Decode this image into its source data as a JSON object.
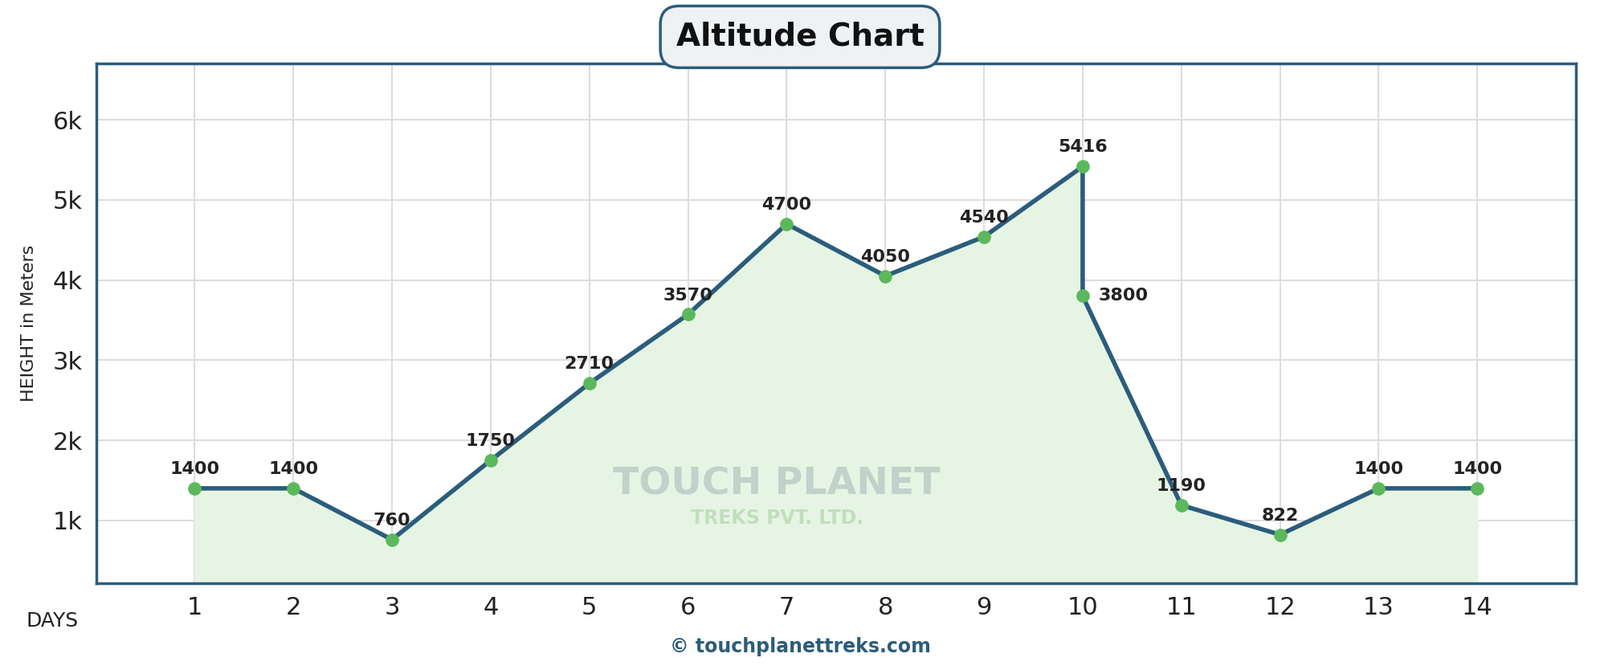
{
  "chart_data": {
    "type": "line",
    "title": "Altitude Chart",
    "x_label": "DAYS",
    "y_label": "HEIGHT in Meters",
    "x": [
      1,
      2,
      3,
      4,
      5,
      6,
      7,
      8,
      9,
      10,
      10,
      11,
      12,
      13,
      14
    ],
    "values": [
      1400,
      1400,
      760,
      1750,
      2710,
      3570,
      4700,
      4050,
      4540,
      5416,
      3800,
      1190,
      822,
      1400,
      1400
    ],
    "color": "#2b5d7c",
    "marker": "circle",
    "data_labels": true,
    "grid": true,
    "xlim": [
      0,
      15
    ],
    "xticks": [
      1,
      2,
      3,
      4,
      5,
      6,
      7,
      8,
      9,
      10,
      11,
      12,
      13,
      14
    ],
    "ylim": [
      220,
      6700
    ],
    "yticks": [
      {
        "value": 1000,
        "label": "1k"
      },
      {
        "value": 2000,
        "label": "2k"
      },
      {
        "value": 3000,
        "label": "3k"
      },
      {
        "value": 4000,
        "label": "4k"
      },
      {
        "value": 5000,
        "label": "5k"
      },
      {
        "value": 6000,
        "label": "6k"
      }
    ],
    "watermark": [
      "TOUCH PLANET",
      "TREKS PVT. LTD."
    ],
    "source": "© touchplanettreks.com"
  }
}
